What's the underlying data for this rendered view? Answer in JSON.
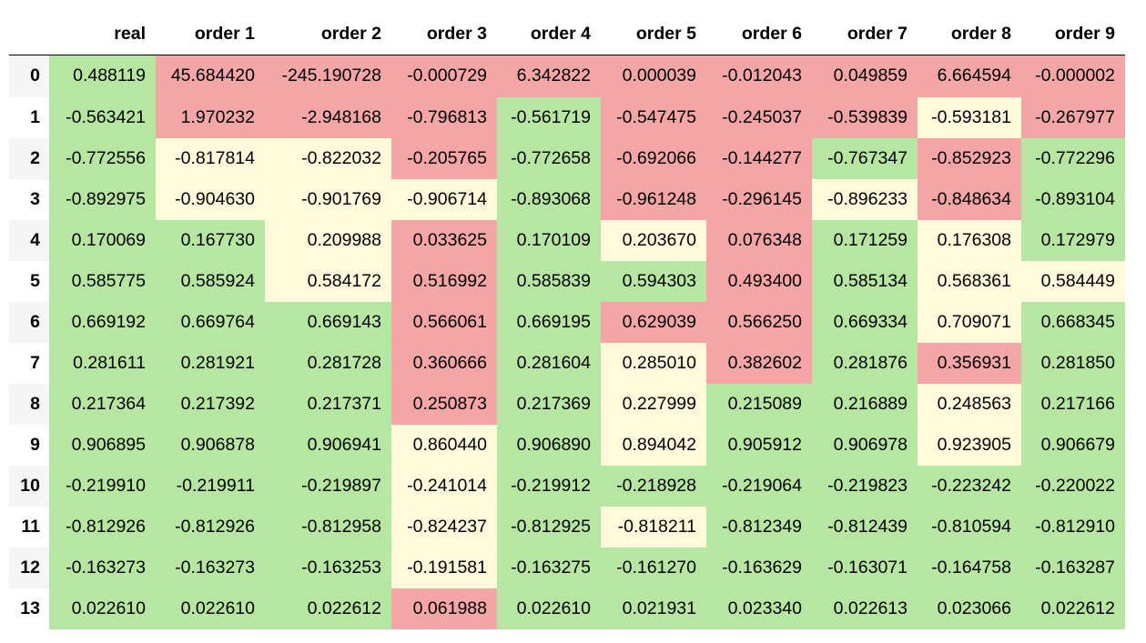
{
  "colors": {
    "green": "#b7e6a2",
    "yellow": "#fffadc",
    "red": "#f4a6a6",
    "zebra": "#f5f5f5"
  },
  "table": {
    "index_header": "",
    "columns": [
      "real",
      "order 1",
      "order 2",
      "order 3",
      "order 4",
      "order 5",
      "order 6",
      "order 7",
      "order 8",
      "order 9"
    ],
    "rows": [
      {
        "index": "0",
        "values": [
          "0.488119",
          "45.684420",
          "-245.190728",
          "-0.000729",
          "6.342822",
          "0.000039",
          "-0.012043",
          "0.049859",
          "6.664594",
          "-0.000002"
        ],
        "status": [
          "green",
          "red",
          "red",
          "red",
          "red",
          "red",
          "red",
          "red",
          "red",
          "red"
        ]
      },
      {
        "index": "1",
        "values": [
          "-0.563421",
          "1.970232",
          "-2.948168",
          "-0.796813",
          "-0.561719",
          "-0.547475",
          "-0.245037",
          "-0.539839",
          "-0.593181",
          "-0.267977"
        ],
        "status": [
          "green",
          "red",
          "red",
          "red",
          "green",
          "red",
          "red",
          "red",
          "yellow",
          "red"
        ]
      },
      {
        "index": "2",
        "values": [
          "-0.772556",
          "-0.817814",
          "-0.822032",
          "-0.205765",
          "-0.772658",
          "-0.692066",
          "-0.144277",
          "-0.767347",
          "-0.852923",
          "-0.772296"
        ],
        "status": [
          "green",
          "yellow",
          "yellow",
          "red",
          "green",
          "red",
          "red",
          "green",
          "red",
          "green"
        ]
      },
      {
        "index": "3",
        "values": [
          "-0.892975",
          "-0.904630",
          "-0.901769",
          "-0.906714",
          "-0.893068",
          "-0.961248",
          "-0.296145",
          "-0.896233",
          "-0.848634",
          "-0.893104"
        ],
        "status": [
          "green",
          "yellow",
          "yellow",
          "yellow",
          "green",
          "red",
          "red",
          "yellow",
          "red",
          "green"
        ]
      },
      {
        "index": "4",
        "values": [
          "0.170069",
          "0.167730",
          "0.209988",
          "0.033625",
          "0.170109",
          "0.203670",
          "0.076348",
          "0.171259",
          "0.176308",
          "0.172979"
        ],
        "status": [
          "green",
          "green",
          "yellow",
          "red",
          "green",
          "yellow",
          "red",
          "green",
          "yellow",
          "green"
        ]
      },
      {
        "index": "5",
        "values": [
          "0.585775",
          "0.585924",
          "0.584172",
          "0.516992",
          "0.585839",
          "0.594303",
          "0.493400",
          "0.585134",
          "0.568361",
          "0.584449"
        ],
        "status": [
          "green",
          "green",
          "yellow",
          "red",
          "green",
          "green",
          "red",
          "green",
          "yellow",
          "yellow"
        ]
      },
      {
        "index": "6",
        "values": [
          "0.669192",
          "0.669764",
          "0.669143",
          "0.566061",
          "0.669195",
          "0.629039",
          "0.566250",
          "0.669334",
          "0.709071",
          "0.668345"
        ],
        "status": [
          "green",
          "green",
          "green",
          "red",
          "green",
          "red",
          "red",
          "green",
          "yellow",
          "green"
        ]
      },
      {
        "index": "7",
        "values": [
          "0.281611",
          "0.281921",
          "0.281728",
          "0.360666",
          "0.281604",
          "0.285010",
          "0.382602",
          "0.281876",
          "0.356931",
          "0.281850"
        ],
        "status": [
          "green",
          "green",
          "green",
          "red",
          "green",
          "yellow",
          "red",
          "green",
          "red",
          "green"
        ]
      },
      {
        "index": "8",
        "values": [
          "0.217364",
          "0.217392",
          "0.217371",
          "0.250873",
          "0.217369",
          "0.227999",
          "0.215089",
          "0.216889",
          "0.248563",
          "0.217166"
        ],
        "status": [
          "green",
          "green",
          "green",
          "red",
          "green",
          "yellow",
          "green",
          "green",
          "yellow",
          "green"
        ]
      },
      {
        "index": "9",
        "values": [
          "0.906895",
          "0.906878",
          "0.906941",
          "0.860440",
          "0.906890",
          "0.894042",
          "0.905912",
          "0.906978",
          "0.923905",
          "0.906679"
        ],
        "status": [
          "green",
          "green",
          "green",
          "yellow",
          "green",
          "yellow",
          "green",
          "green",
          "yellow",
          "green"
        ]
      },
      {
        "index": "10",
        "values": [
          "-0.219910",
          "-0.219911",
          "-0.219897",
          "-0.241014",
          "-0.219912",
          "-0.218928",
          "-0.219064",
          "-0.219823",
          "-0.223242",
          "-0.220022"
        ],
        "status": [
          "green",
          "green",
          "green",
          "yellow",
          "green",
          "green",
          "green",
          "green",
          "green",
          "green"
        ]
      },
      {
        "index": "11",
        "values": [
          "-0.812926",
          "-0.812926",
          "-0.812958",
          "-0.824237",
          "-0.812925",
          "-0.818211",
          "-0.812349",
          "-0.812439",
          "-0.810594",
          "-0.812910"
        ],
        "status": [
          "green",
          "green",
          "green",
          "yellow",
          "green",
          "yellow",
          "green",
          "green",
          "green",
          "green"
        ]
      },
      {
        "index": "12",
        "values": [
          "-0.163273",
          "-0.163273",
          "-0.163253",
          "-0.191581",
          "-0.163275",
          "-0.161270",
          "-0.163629",
          "-0.163071",
          "-0.164758",
          "-0.163287"
        ],
        "status": [
          "green",
          "green",
          "green",
          "yellow",
          "green",
          "green",
          "green",
          "green",
          "green",
          "green"
        ]
      },
      {
        "index": "13",
        "values": [
          "0.022610",
          "0.022610",
          "0.022612",
          "0.061988",
          "0.022610",
          "0.021931",
          "0.023340",
          "0.022613",
          "0.023066",
          "0.022612"
        ],
        "status": [
          "green",
          "green",
          "green",
          "red",
          "green",
          "green",
          "green",
          "green",
          "green",
          "green"
        ]
      }
    ]
  }
}
